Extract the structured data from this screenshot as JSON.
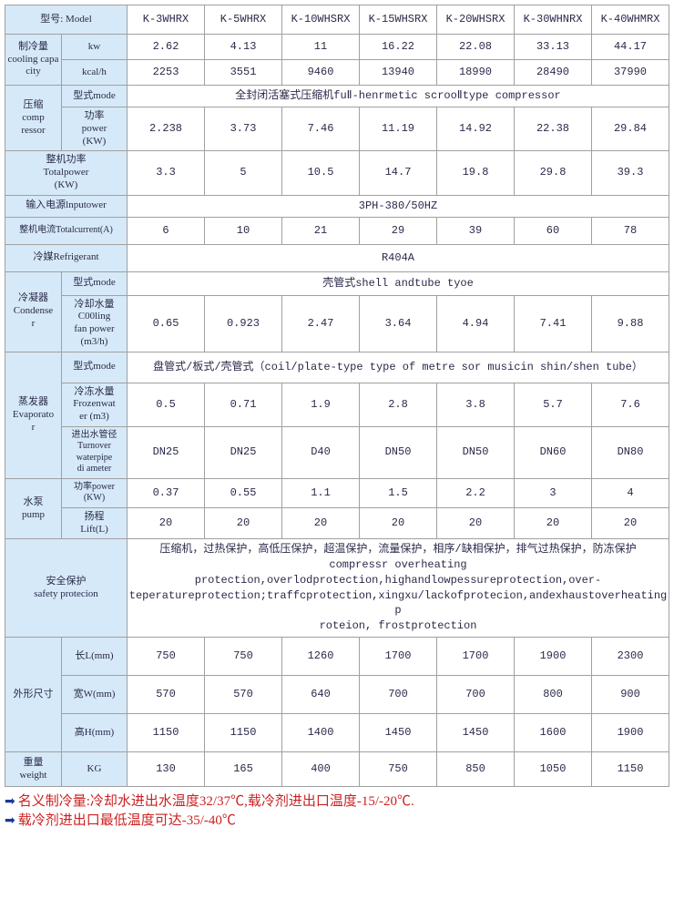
{
  "headers": {
    "model": "型号: Model",
    "models": [
      "K-3WHRX",
      "K-5WHRX",
      "K-10WHSRX",
      "K-15WHSRX",
      "K-20WHSRX",
      "K-30WHNRX",
      "K-40WHMRX"
    ]
  },
  "cooling": {
    "label": "制冷量\ncooling capacity",
    "kw_label": "kw",
    "kw": [
      "2.62",
      "4.13",
      "11",
      "16.22",
      "22.08",
      "33.13",
      "44.17"
    ],
    "kcal_label": "kcal/h",
    "kcal": [
      "2253",
      "3551",
      "9460",
      "13940",
      "18990",
      "28490",
      "37990"
    ]
  },
  "compressor": {
    "label": "压缩\ncomp\nressor",
    "type_label": "型式mode",
    "type_value": "全封闭活塞式压缩机fuⅡ-henrmetic scrooⅡtype compressor",
    "power_label": "功率\npower\n(KW)",
    "power": [
      "2.238",
      "3.73",
      "7.46",
      "11.19",
      "14.92",
      "22.38",
      "29.84"
    ]
  },
  "totalpower": {
    "label": "整机功率\nTotalpower\n(KW)",
    "values": [
      "3.3",
      "5",
      "10.5",
      "14.7",
      "19.8",
      "29.8",
      "39.3"
    ]
  },
  "input": {
    "label": "输入电源lnputower",
    "value": "3PH-380/50HZ"
  },
  "totalcurrent": {
    "label": "整机电流Totalcurrent(A)",
    "values": [
      "6",
      "10",
      "21",
      "29",
      "39",
      "60",
      "78"
    ]
  },
  "refrigerant": {
    "label": "冷媒Refrigerant",
    "value": "R404A"
  },
  "condenser": {
    "label": "冷凝器\nCondense\nr",
    "type_label": "型式mode",
    "type_value": "壳管式shell andtube tyoe",
    "fan_label": "冷却水量\nC00ling\nfan power\n(m3/h)",
    "fan": [
      "0.65",
      "0.923",
      "2.47",
      "3.64",
      "4.94",
      "7.41",
      "9.88"
    ]
  },
  "evaporator": {
    "label": "蒸发器\nEvaporato\nr",
    "type_label": "型式mode",
    "type_value": "盘管式/板式/壳管式（coil/plate-type type of metre sor musicin shin/shen tube）",
    "frozen_label": "冷冻水量\nFrozenwat\ner (m3)",
    "frozen": [
      "0.5",
      "0.71",
      "1.9",
      "2.8",
      "3.8",
      "5.7",
      "7.6"
    ],
    "pipe_label": "进出水管径\nTurnover\nwaterpipe\ndi ameter",
    "pipe": [
      "DN25",
      "DN25",
      "D40",
      "DN50",
      "DN50",
      "DN60",
      "DN80"
    ]
  },
  "pump": {
    "label": "水泵\npump",
    "power_label": "功率power\n(KW)",
    "power": [
      "0.37",
      "0.55",
      "1.1",
      "1.5",
      "2.2",
      "3",
      "4"
    ],
    "lift_label": "扬程\nLift(L)",
    "lift": [
      "20",
      "20",
      "20",
      "20",
      "20",
      "20",
      "20"
    ]
  },
  "safety": {
    "label": "安全保护\nsafety protecion",
    "value": "压缩机，过热保护，高低压保护，超温保护，流量保护，相序/缺相保护，排气过热保护，防冻保护\ncompressr overheating\nprotection,overlodprotection,highandlowpessureprotection,over-\nteperatureprotection;traffcprotection,xingxu/lackofprotecion,andexhaustoverheatingp\nroteion,    frostprotection"
  },
  "dims": {
    "label": "外形尺寸",
    "L_label": "长L(mm)",
    "L": [
      "750",
      "750",
      "1260",
      "1700",
      "1700",
      "1900",
      "2300"
    ],
    "W_label": "宽W(mm)",
    "W": [
      "570",
      "570",
      "640",
      "700",
      "700",
      "800",
      "900"
    ],
    "H_label": "高H(mm)",
    "H": [
      "1150",
      "1150",
      "1400",
      "1450",
      "1450",
      "1600",
      "1900"
    ]
  },
  "weight": {
    "label": "重量\nweight",
    "unit": "KG",
    "values": [
      "130",
      "165",
      "400",
      "750",
      "850",
      "1050",
      "1150"
    ]
  },
  "notes": {
    "line1": "名义制冷量:冷却水进出水温度32/37℃,载冷剂进出口温度-15/-20℃.",
    "line2": "载冷剂进出口最低温度可达-35/-40℃"
  },
  "style": {
    "header_bg": "#d6e9f8",
    "data_bg": "#ffffff",
    "border_color": "#a0a0a0",
    "note_color": "#cc2020",
    "arrow_color": "#1a3a9a"
  }
}
